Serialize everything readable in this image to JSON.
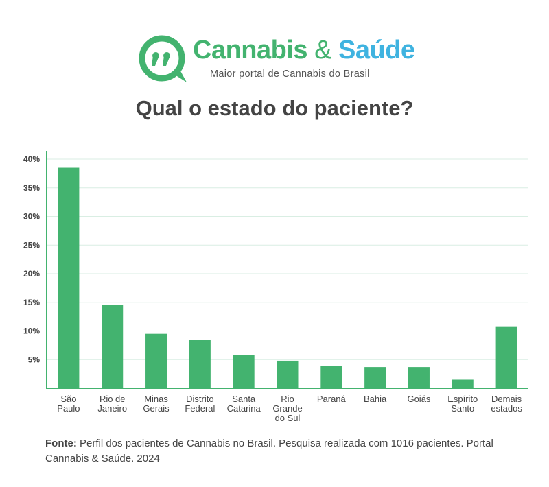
{
  "brand": {
    "name_part1": "Cannabis",
    "name_amp": "&",
    "name_part2": "Saúde",
    "tagline": "Maior portal de Cannabis do Brasil"
  },
  "colors": {
    "green": "#43b36f",
    "blue": "#3fb3e0",
    "text": "#444444"
  },
  "footer": {
    "label": "Fonte:",
    "text": "Perfil dos pacientes de Cannabis no Brasil. Pesquisa realizada com 1016 pacientes. Portal Cannabis & Saúde. 2024"
  },
  "chart_data": {
    "type": "bar",
    "title": "Qual o estado do paciente?",
    "xlabel": "",
    "ylabel": "",
    "ylim": [
      0,
      40
    ],
    "yticks": [
      5,
      10,
      15,
      20,
      25,
      30,
      35,
      40
    ],
    "ytick_labels": [
      "5%",
      "10%",
      "15%",
      "20%",
      "25%",
      "30%",
      "35%",
      "40%"
    ],
    "grid": true,
    "categories": [
      [
        "São",
        "Paulo"
      ],
      [
        "Rio de",
        "Janeiro"
      ],
      [
        "Minas",
        "Gerais"
      ],
      [
        "Distrito",
        "Federal"
      ],
      [
        "Santa",
        "Catarina"
      ],
      [
        "Rio",
        "Grande",
        "do Sul"
      ],
      [
        "Paraná"
      ],
      [
        "Bahia"
      ],
      [
        "Goiás"
      ],
      [
        "Espírito",
        "Santo"
      ],
      [
        "Demais",
        "estados"
      ]
    ],
    "values": [
      38.5,
      14.5,
      9.5,
      8.5,
      5.8,
      4.8,
      3.9,
      3.7,
      3.7,
      1.5,
      10.7
    ]
  }
}
